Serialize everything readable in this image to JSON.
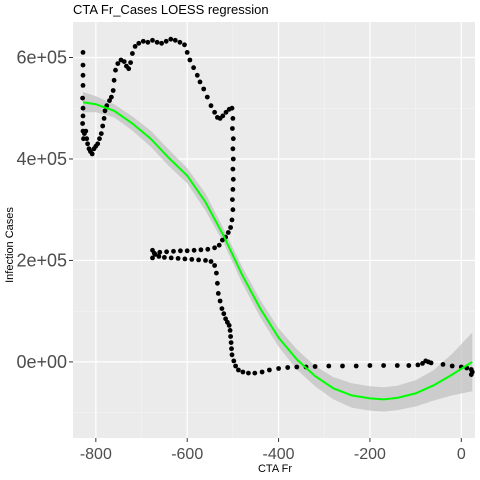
{
  "chart_data": {
    "type": "scatter",
    "title": "CTA Fr_Cases LOESS regression",
    "xlabel": "CTA Fr",
    "ylabel": "Infection Cases",
    "xlim": [
      -850,
      30
    ],
    "ylim": [
      -150000,
      670000
    ],
    "x_ticks": [
      -800,
      -600,
      -400,
      -200,
      0
    ],
    "x_tick_labels": [
      "-800",
      "-600",
      "-400",
      "-200",
      "0"
    ],
    "y_ticks": [
      0,
      200000,
      400000,
      600000
    ],
    "y_tick_labels": [
      "0e+00",
      "2e+05",
      "4e+05",
      "6e+05"
    ],
    "grid": true,
    "points": [
      [
        -828,
        610000
      ],
      [
        -828,
        585000
      ],
      [
        -828,
        565000
      ],
      [
        -828,
        545000
      ],
      [
        -829,
        520000
      ],
      [
        -828,
        500000
      ],
      [
        -828,
        485000
      ],
      [
        -829,
        470000
      ],
      [
        -828,
        455000
      ],
      [
        -827,
        440000
      ],
      [
        -825,
        450000
      ],
      [
        -822,
        455000
      ],
      [
        -820,
        440000
      ],
      [
        -818,
        430000
      ],
      [
        -815,
        420000
      ],
      [
        -812,
        415000
      ],
      [
        -808,
        410000
      ],
      [
        -804,
        420000
      ],
      [
        -800,
        425000
      ],
      [
        -796,
        430000
      ],
      [
        -792,
        440000
      ],
      [
        -788,
        450000
      ],
      [
        -785,
        465000
      ],
      [
        -782,
        480000
      ],
      [
        -780,
        495000
      ],
      [
        -776,
        505000
      ],
      [
        -770,
        515000
      ],
      [
        -766,
        522000
      ],
      [
        -762,
        535000
      ],
      [
        -760,
        555000
      ],
      [
        -757,
        575000
      ],
      [
        -752,
        588000
      ],
      [
        -745,
        595000
      ],
      [
        -738,
        592000
      ],
      [
        -733,
        583000
      ],
      [
        -728,
        578000
      ],
      [
        -724,
        590000
      ],
      [
        -720,
        608000
      ],
      [
        -714,
        622000
      ],
      [
        -706,
        628000
      ],
      [
        -696,
        632000
      ],
      [
        -686,
        630000
      ],
      [
        -676,
        634000
      ],
      [
        -666,
        630000
      ],
      [
        -656,
        628000
      ],
      [
        -646,
        632000
      ],
      [
        -636,
        636000
      ],
      [
        -626,
        634000
      ],
      [
        -616,
        630000
      ],
      [
        -606,
        625000
      ],
      [
        -600,
        610000
      ],
      [
        -594,
        595000
      ],
      [
        -586,
        580000
      ],
      [
        -578,
        565000
      ],
      [
        -572,
        552000
      ],
      [
        -564,
        538000
      ],
      [
        -556,
        522000
      ],
      [
        -548,
        505000
      ],
      [
        -540,
        492000
      ],
      [
        -534,
        482000
      ],
      [
        -528,
        480000
      ],
      [
        -522,
        485000
      ],
      [
        -515,
        492000
      ],
      [
        -508,
        498000
      ],
      [
        -502,
        500000
      ],
      [
        -500,
        480000
      ],
      [
        -501,
        460000
      ],
      [
        -499,
        440000
      ],
      [
        -500,
        420000
      ],
      [
        -499,
        400000
      ],
      [
        -500,
        380000
      ],
      [
        -499,
        360000
      ],
      [
        -500,
        340000
      ],
      [
        -501,
        320000
      ],
      [
        -500,
        300000
      ],
      [
        -502,
        280000
      ],
      [
        -505,
        265000
      ],
      [
        -510,
        255000
      ],
      [
        -516,
        246000
      ],
      [
        -523,
        240000
      ],
      [
        -530,
        230000
      ],
      [
        -540,
        225000
      ],
      [
        -555,
        222000
      ],
      [
        -570,
        221000
      ],
      [
        -585,
        220000
      ],
      [
        -600,
        219000
      ],
      [
        -615,
        219000
      ],
      [
        -630,
        218000
      ],
      [
        -645,
        217000
      ],
      [
        -660,
        216000
      ],
      [
        -672,
        214000
      ],
      [
        -676,
        205000
      ],
      [
        -676,
        220000
      ],
      [
        -670,
        212000
      ],
      [
        -662,
        208000
      ],
      [
        -650,
        206000
      ],
      [
        -635,
        205000
      ],
      [
        -620,
        204000
      ],
      [
        -605,
        203000
      ],
      [
        -590,
        202000
      ],
      [
        -575,
        201000
      ],
      [
        -560,
        200000
      ],
      [
        -548,
        198000
      ],
      [
        -540,
        190000
      ],
      [
        -536,
        175000
      ],
      [
        -534,
        155000
      ],
      [
        -532,
        135000
      ],
      [
        -528,
        120000
      ],
      [
        -524,
        105000
      ],
      [
        -520,
        95000
      ],
      [
        -516,
        85000
      ],
      [
        -512,
        78000
      ],
      [
        -508,
        72000
      ],
      [
        -506,
        62000
      ],
      [
        -505,
        50000
      ],
      [
        -504,
        38000
      ],
      [
        -503,
        26000
      ],
      [
        -502,
        14000
      ],
      [
        -498,
        2000
      ],
      [
        -494,
        -8000
      ],
      [
        -488,
        -16000
      ],
      [
        -478,
        -20000
      ],
      [
        -466,
        -22000
      ],
      [
        -452,
        -22000
      ],
      [
        -436,
        -20000
      ],
      [
        -420,
        -16000
      ],
      [
        -400,
        -13000
      ],
      [
        -380,
        -11000
      ],
      [
        -360,
        -10000
      ],
      [
        -340,
        -10000
      ],
      [
        -320,
        -9000
      ],
      [
        -290,
        -8000
      ],
      [
        -260,
        -8000
      ],
      [
        -230,
        -8000
      ],
      [
        -200,
        -7000
      ],
      [
        -170,
        -7000
      ],
      [
        -140,
        -7000
      ],
      [
        -115,
        -7000
      ],
      [
        -95,
        -6000
      ],
      [
        -85,
        -3000
      ],
      [
        -78,
        2000
      ],
      [
        -72,
        0
      ],
      [
        -66,
        -2000
      ],
      [
        -40,
        -5000
      ],
      [
        -20,
        -8000
      ],
      [
        0,
        -10000
      ],
      [
        12,
        -12000
      ],
      [
        22,
        -15000
      ],
      [
        24,
        -20000
      ],
      [
        22,
        -25000
      ]
    ],
    "loess_fit": [
      [
        -828,
        512000
      ],
      [
        -800,
        508000
      ],
      [
        -760,
        495000
      ],
      [
        -720,
        470000
      ],
      [
        -680,
        440000
      ],
      [
        -640,
        402000
      ],
      [
        -600,
        367000
      ],
      [
        -560,
        315000
      ],
      [
        -520,
        248000
      ],
      [
        -480,
        172000
      ],
      [
        -440,
        105000
      ],
      [
        -400,
        48000
      ],
      [
        -360,
        5000
      ],
      [
        -320,
        -28000
      ],
      [
        -280,
        -52000
      ],
      [
        -240,
        -66000
      ],
      [
        -200,
        -72000
      ],
      [
        -170,
        -74000
      ],
      [
        -140,
        -71000
      ],
      [
        -100,
        -62000
      ],
      [
        -60,
        -46000
      ],
      [
        -20,
        -25000
      ],
      [
        24,
        0
      ]
    ],
    "loess_band": {
      "upper": [
        [
          -828,
          532000
        ],
        [
          -800,
          524000
        ],
        [
          -760,
          508000
        ],
        [
          -720,
          484000
        ],
        [
          -680,
          456000
        ],
        [
          -640,
          418000
        ],
        [
          -600,
          382000
        ],
        [
          -560,
          332000
        ],
        [
          -520,
          262000
        ],
        [
          -480,
          188000
        ],
        [
          -440,
          122000
        ],
        [
          -400,
          66000
        ],
        [
          -360,
          25000
        ],
        [
          -320,
          -8000
        ],
        [
          -280,
          -30000
        ],
        [
          -240,
          -42000
        ],
        [
          -200,
          -48000
        ],
        [
          -170,
          -50000
        ],
        [
          -140,
          -47000
        ],
        [
          -100,
          -36000
        ],
        [
          -60,
          -16000
        ],
        [
          -20,
          16000
        ],
        [
          24,
          58000
        ]
      ],
      "lower": [
        [
          -828,
          492000
        ],
        [
          -800,
          492000
        ],
        [
          -760,
          482000
        ],
        [
          -720,
          456000
        ],
        [
          -680,
          424000
        ],
        [
          -640,
          386000
        ],
        [
          -600,
          352000
        ],
        [
          -560,
          298000
        ],
        [
          -520,
          234000
        ],
        [
          -480,
          156000
        ],
        [
          -440,
          88000
        ],
        [
          -400,
          30000
        ],
        [
          -360,
          -15000
        ],
        [
          -320,
          -48000
        ],
        [
          -280,
          -74000
        ],
        [
          -240,
          -90000
        ],
        [
          -200,
          -96000
        ],
        [
          -170,
          -98000
        ],
        [
          -140,
          -95000
        ],
        [
          -100,
          -88000
        ],
        [
          -60,
          -76000
        ],
        [
          -20,
          -66000
        ],
        [
          24,
          -58000
        ]
      ]
    },
    "colors": {
      "panel": "#ebebeb",
      "grid_major": "#ffffff",
      "grid_minor": "#f5f5f5",
      "points": "#000000",
      "fit_line": "#00ff00",
      "band": "#bfbfbf"
    }
  }
}
